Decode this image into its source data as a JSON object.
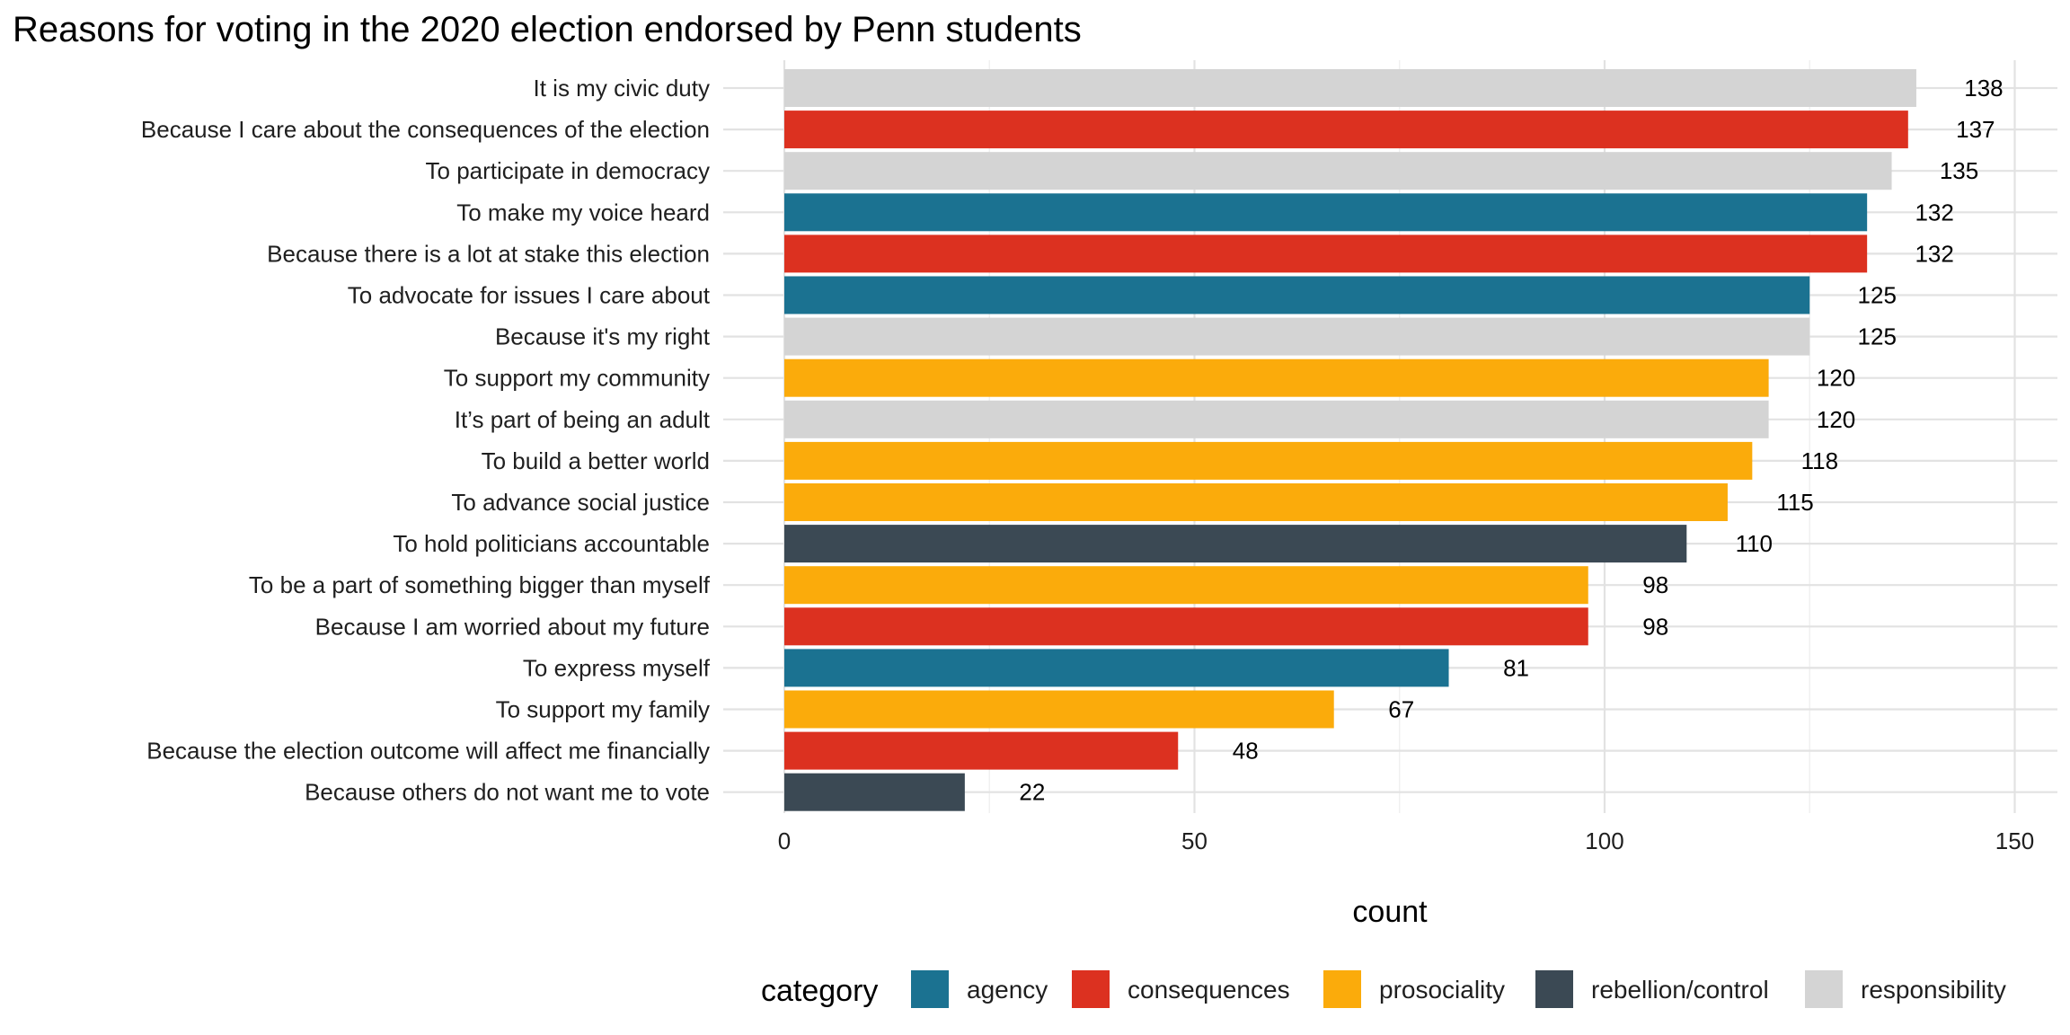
{
  "chart_data": {
    "type": "bar",
    "orientation": "horizontal",
    "title": "Reasons for voting in the 2020 election endorsed by Penn students",
    "xlabel": "count",
    "ylabel": "",
    "xlim": [
      0,
      150
    ],
    "xticks": [
      0,
      50,
      100,
      150
    ],
    "grid": true,
    "legend_title": "category",
    "legend_position": "bottom",
    "legend": [
      {
        "name": "agency",
        "color": "#1b7291"
      },
      {
        "name": "consequences",
        "color": "#dc3120"
      },
      {
        "name": "prosociality",
        "color": "#fbab0b"
      },
      {
        "name": "rebellion/control",
        "color": "#3b4954"
      },
      {
        "name": "responsibility",
        "color": "#d4d4d4"
      }
    ],
    "bars": [
      {
        "label": "It is my civic duty",
        "value": 138,
        "category": "responsibility"
      },
      {
        "label": "Because I care about the consequences of the election",
        "value": 137,
        "category": "consequences"
      },
      {
        "label": "To participate in democracy",
        "value": 135,
        "category": "responsibility"
      },
      {
        "label": "To make my voice heard",
        "value": 132,
        "category": "agency"
      },
      {
        "label": "Because there is a lot at stake this election",
        "value": 132,
        "category": "consequences"
      },
      {
        "label": "To advocate for issues I care about",
        "value": 125,
        "category": "agency"
      },
      {
        "label": "Because it's my right",
        "value": 125,
        "category": "responsibility"
      },
      {
        "label": "To support my community",
        "value": 120,
        "category": "prosociality"
      },
      {
        "label": "It’s part of being an adult",
        "value": 120,
        "category": "responsibility"
      },
      {
        "label": "To build a better world",
        "value": 118,
        "category": "prosociality"
      },
      {
        "label": "To advance social justice",
        "value": 115,
        "category": "prosociality"
      },
      {
        "label": "To hold politicians accountable",
        "value": 110,
        "category": "rebellion/control"
      },
      {
        "label": "To be a part of something bigger than myself",
        "value": 98,
        "category": "prosociality"
      },
      {
        "label": "Because I am worried about my future",
        "value": 98,
        "category": "consequences"
      },
      {
        "label": "To express myself",
        "value": 81,
        "category": "agency"
      },
      {
        "label": "To support my family",
        "value": 67,
        "category": "prosociality"
      },
      {
        "label": "Because the election outcome will affect me financially",
        "value": 48,
        "category": "consequences"
      },
      {
        "label": "Because others do not want me to vote",
        "value": 22,
        "category": "rebellion/control"
      }
    ]
  }
}
